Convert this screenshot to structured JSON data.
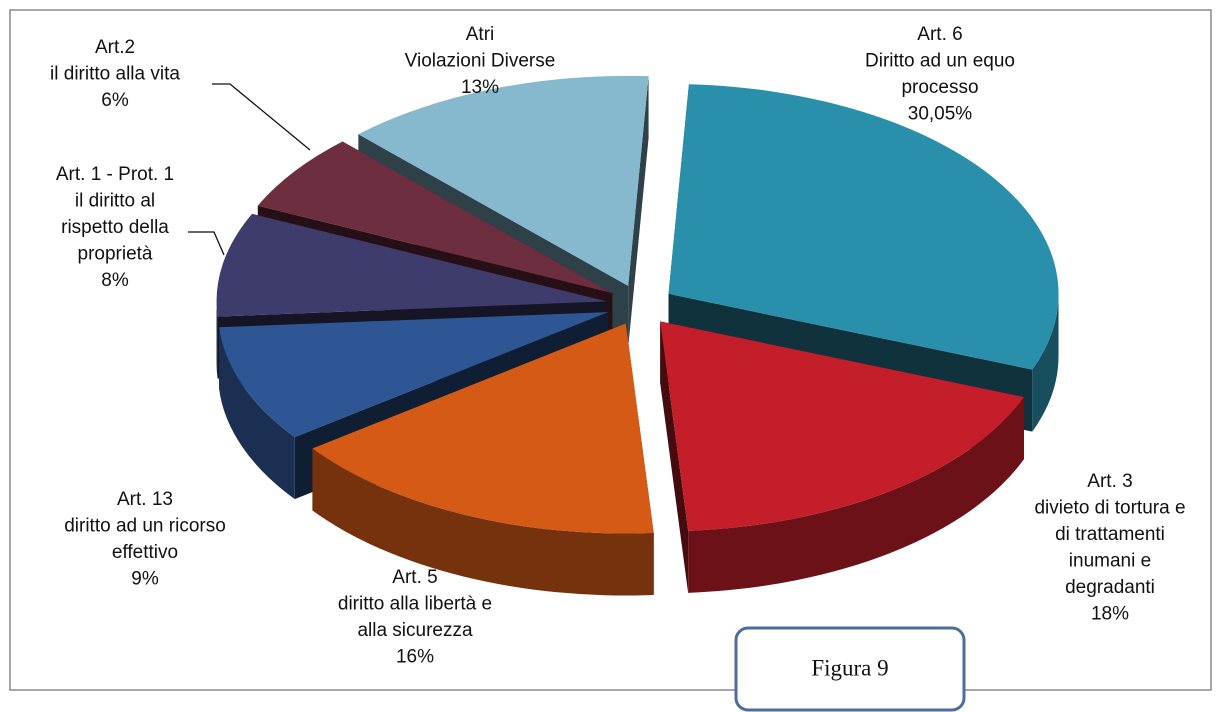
{
  "chart_data": {
    "type": "pie3d",
    "categories": [
      [
        "Art. 6",
        "Diritto ad un equo",
        "processo"
      ],
      [
        "Art. 3",
        "divieto di tortura e",
        "di trattamenti",
        "inumani e",
        "degradanti"
      ],
      [
        "Art. 5",
        "diritto alla libertà e",
        "alla sicurezza"
      ],
      [
        "Art. 13",
        "diritto ad un ricorso",
        "effettivo"
      ],
      [
        "Art. 1 - Prot. 1",
        "il diritto al",
        "rispetto della",
        "proprietà"
      ],
      [
        "Art.2",
        "il diritto alla vita"
      ],
      [
        "Atri",
        "Violazioni Diverse"
      ]
    ],
    "values": [
      30.05,
      18,
      16,
      9,
      8,
      6,
      13
    ],
    "value_labels": [
      "30,05%",
      "18%",
      "16%",
      "9%",
      "8%",
      "6%",
      "13%"
    ],
    "colors": [
      "#2a8fab",
      "#c41e2a",
      "#d55a16",
      "#2f5694",
      "#3e3c6c",
      "#6d2e40",
      "#86b9ce"
    ],
    "annotation": "Figura 9"
  }
}
